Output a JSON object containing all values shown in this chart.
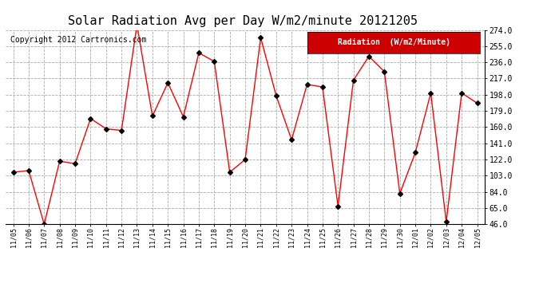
{
  "title": "Solar Radiation Avg per Day W/m2/minute 20121205",
  "copyright": "Copyright 2012 Cartronics.com",
  "legend_label": "Radiation  (W/m2/Minute)",
  "dates": [
    "11/05",
    "11/06",
    "11/07",
    "11/08",
    "11/09",
    "11/10",
    "11/11",
    "11/12",
    "11/13",
    "11/14",
    "11/15",
    "11/16",
    "11/17",
    "11/18",
    "11/19",
    "11/20",
    "11/21",
    "11/22",
    "11/23",
    "11/24",
    "11/25",
    "11/26",
    "11/27",
    "11/28",
    "11/29",
    "11/30",
    "12/01",
    "12/02",
    "12/03",
    "12/04",
    "12/05"
  ],
  "values": [
    107,
    109,
    46,
    120,
    117,
    170,
    158,
    156,
    280,
    173,
    212,
    172,
    247,
    237,
    107,
    122,
    265,
    197,
    145,
    210,
    207,
    67,
    215,
    243,
    225,
    82,
    130,
    200,
    49,
    200,
    188
  ],
  "line_color": "red",
  "marker_color": "black",
  "marker_size": 3,
  "bg_color": "#ffffff",
  "grid_color": "#aaaaaa",
  "ylim": [
    46,
    274
  ],
  "yticks": [
    46.0,
    65.0,
    84.0,
    103.0,
    122.0,
    141.0,
    160.0,
    179.0,
    198.0,
    217.0,
    236.0,
    255.0,
    274.0
  ],
  "title_fontsize": 11,
  "copyright_fontsize": 7,
  "legend_bg": "#cc0000",
  "legend_text_color": "#ffffff",
  "legend_fontsize": 7
}
